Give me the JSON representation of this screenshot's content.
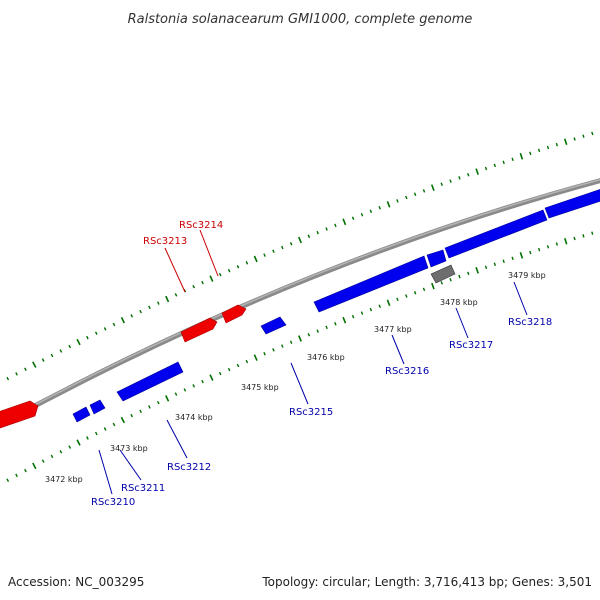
{
  "title": "Ralstonia solanacearum GMI1000, complete genome",
  "footer": {
    "accession": "Accession: NC_003295",
    "summary": "Topology: circular; Length: 3,716,413 bp; Genes: 3,501"
  },
  "colors": {
    "forward_gene": "#ff0000",
    "reverse_gene": "#0000ff",
    "other_feature": "#707070",
    "tick": "#007000",
    "backbone": "#888888",
    "forward_label": "#cc0000",
    "reverse_label": "#0000aa"
  },
  "kbp_labels": [
    "3472 kbp",
    "3473 kbp",
    "3474 kbp",
    "3475 kbp",
    "3476 kbp",
    "3477 kbp",
    "3478 kbp",
    "3479 kbp"
  ],
  "forward_genes": [
    {
      "name": "",
      "label": ""
    },
    {
      "name": "RSc3213",
      "label": "RSc3213"
    },
    {
      "name": "RSc3214",
      "label": "RSc3214"
    }
  ],
  "reverse_genes": [
    {
      "name": "RSc3210",
      "label": "RSc3210"
    },
    {
      "name": "RSc3211",
      "label": "RSc3211"
    },
    {
      "name": "RSc3212",
      "label": "RSc3212"
    },
    {
      "name": "RSc3215",
      "label": "RSc3215"
    },
    {
      "name": "RSc3216",
      "label": "RSc3216"
    },
    {
      "name": "RSc3217",
      "label": "RSc3217"
    },
    {
      "name": "RSc3218",
      "label": "RSc3218"
    }
  ]
}
